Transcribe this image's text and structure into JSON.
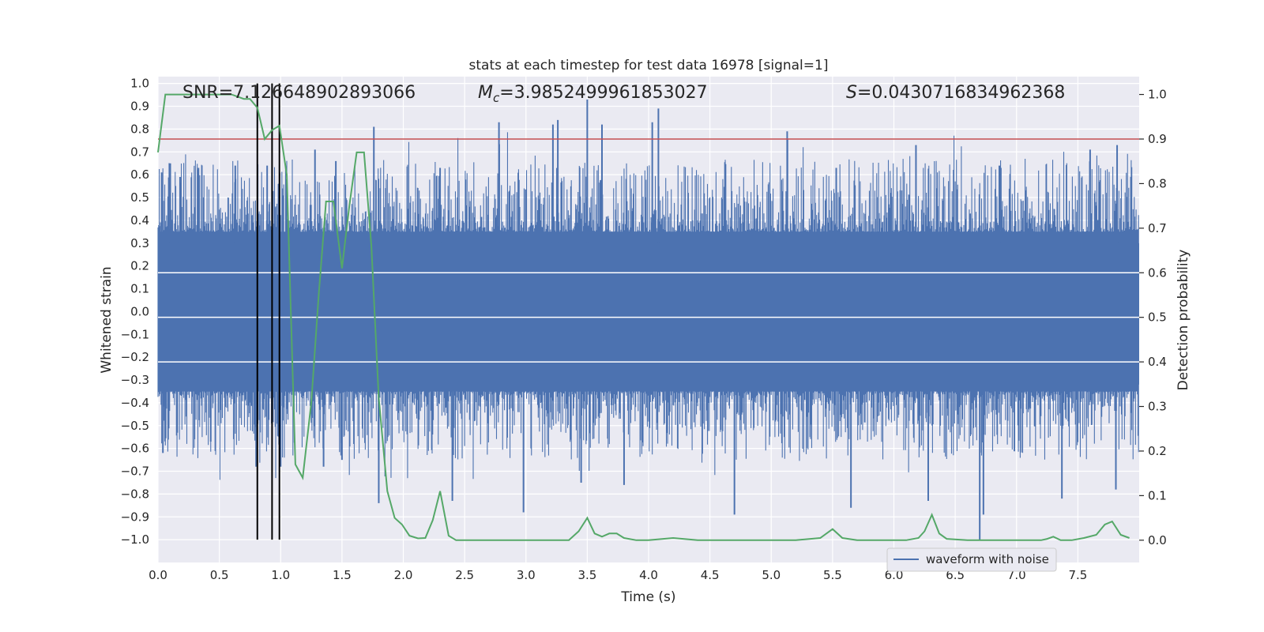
{
  "chart_data": {
    "type": "line",
    "title": "stats at each timestep for test data 16978 [signal=1]",
    "xlabel": "Time (s)",
    "ylabel": "Whitened strain",
    "ylabel_right": "Detection probability",
    "xlim": [
      0.0,
      8.0
    ],
    "ylim": [
      -1.1,
      1.03
    ],
    "ylim_right": [
      -0.05,
      1.04
    ],
    "x_ticks": [
      0.0,
      0.5,
      1.0,
      1.5,
      2.0,
      2.5,
      3.0,
      3.5,
      4.0,
      4.5,
      5.0,
      5.5,
      6.0,
      6.5,
      7.0,
      7.5
    ],
    "x_tick_labels": [
      "0.0",
      "0.5",
      "1.0",
      "1.5",
      "2.0",
      "2.5",
      "3.0",
      "3.5",
      "4.0",
      "4.5",
      "5.0",
      "5.5",
      "6.0",
      "6.5",
      "7.0",
      "7.5"
    ],
    "y_ticks": [
      1.0,
      0.9,
      0.8,
      0.7,
      0.6,
      0.5,
      0.4,
      0.3,
      0.2,
      0.1,
      0.0,
      -0.1,
      -0.2,
      -0.3,
      -0.4,
      -0.5,
      -0.6,
      -0.7,
      -0.8,
      -0.9,
      -1.0
    ],
    "y_tick_labels": [
      "1.0",
      "0.9",
      "0.8",
      "0.7",
      "0.6",
      "0.5",
      "0.4",
      "0.3",
      "0.2",
      "0.1",
      "0.0",
      "−0.1",
      "−0.2",
      "−0.3",
      "−0.4",
      "−0.5",
      "−0.6",
      "−0.7",
      "−0.8",
      "−0.9",
      "−1.0"
    ],
    "y2_ticks": [
      1.0,
      0.9,
      0.8,
      0.7,
      0.6,
      0.5,
      0.4,
      0.3,
      0.2,
      0.1,
      0.0
    ],
    "y2_tick_labels": [
      "1.0",
      "0.9",
      "0.8",
      "0.7",
      "0.6",
      "0.5",
      "0.4",
      "0.3",
      "0.2",
      "0.1",
      "0.0"
    ],
    "annotations": {
      "snr": "SNR=7.126648902893066",
      "mc_symbol": "M",
      "mc_subscript": "c",
      "mc_value": "=3.9852499961853027",
      "s_symbol": "S",
      "s_value": "=0.0430716834962368"
    },
    "threshold": 0.9,
    "vertical_lines_x": [
      0.81,
      0.93,
      0.99
    ],
    "legend": [
      "waveform with noise"
    ],
    "waveform": {
      "name": "waveform with noise",
      "description_envelope_core": 0.35,
      "samples": 1600,
      "spikes": [
        {
          "x": 0.03,
          "y": 0.61
        },
        {
          "x": 0.04,
          "y": -0.62
        },
        {
          "x": 0.1,
          "y": 0.65
        },
        {
          "x": 0.18,
          "y": 0.59
        },
        {
          "x": 0.33,
          "y": 0.63
        },
        {
          "x": 0.43,
          "y": -0.57
        },
        {
          "x": 0.63,
          "y": 0.64
        },
        {
          "x": 0.8,
          "y": -0.68
        },
        {
          "x": 0.89,
          "y": 0.64
        },
        {
          "x": 1.0,
          "y": -0.68
        },
        {
          "x": 1.28,
          "y": 0.71
        },
        {
          "x": 1.35,
          "y": -0.68
        },
        {
          "x": 1.45,
          "y": 0.66
        },
        {
          "x": 1.5,
          "y": -0.65
        },
        {
          "x": 1.76,
          "y": 0.81
        },
        {
          "x": 1.8,
          "y": -0.84
        },
        {
          "x": 2.3,
          "y": 0.63
        },
        {
          "x": 2.4,
          "y": -0.83
        },
        {
          "x": 2.78,
          "y": 0.83
        },
        {
          "x": 2.98,
          "y": -0.88
        },
        {
          "x": 3.22,
          "y": 0.82
        },
        {
          "x": 3.26,
          "y": 0.84
        },
        {
          "x": 3.45,
          "y": -0.75
        },
        {
          "x": 3.5,
          "y": 0.93
        },
        {
          "x": 3.62,
          "y": 0.82
        },
        {
          "x": 3.8,
          "y": -0.76
        },
        {
          "x": 4.03,
          "y": 0.83
        },
        {
          "x": 4.08,
          "y": 0.89
        },
        {
          "x": 4.7,
          "y": -0.89
        },
        {
          "x": 5.13,
          "y": 0.79
        },
        {
          "x": 5.53,
          "y": 0.63
        },
        {
          "x": 5.65,
          "y": -0.86
        },
        {
          "x": 6.18,
          "y": 0.73
        },
        {
          "x": 6.28,
          "y": -0.83
        },
        {
          "x": 6.7,
          "y": -1.0
        },
        {
          "x": 6.73,
          "y": -0.89
        },
        {
          "x": 6.86,
          "y": 0.64
        },
        {
          "x": 7.37,
          "y": -0.82
        },
        {
          "x": 7.6,
          "y": 0.71
        },
        {
          "x": 7.82,
          "y": 0.73
        },
        {
          "x": 7.81,
          "y": -0.78
        },
        {
          "x": 7.9,
          "y": 0.5
        }
      ]
    },
    "detection_probability": {
      "name": "detection probability",
      "x": [
        0.0,
        0.06,
        0.12,
        0.25,
        0.5,
        0.6,
        0.7,
        0.75,
        0.81,
        0.87,
        0.93,
        0.99,
        1.05,
        1.12,
        1.18,
        1.25,
        1.31,
        1.37,
        1.43,
        1.5,
        1.56,
        1.62,
        1.68,
        1.74,
        1.8,
        1.87,
        1.93,
        1.99,
        2.05,
        2.12,
        2.18,
        2.24,
        2.3,
        2.37,
        2.43,
        2.5,
        2.7,
        3.0,
        3.2,
        3.35,
        3.43,
        3.5,
        3.56,
        3.62,
        3.68,
        3.74,
        3.8,
        3.9,
        4.0,
        4.2,
        4.4,
        4.6,
        4.8,
        5.0,
        5.2,
        5.4,
        5.5,
        5.58,
        5.7,
        5.9,
        6.1,
        6.2,
        6.25,
        6.31,
        6.37,
        6.43,
        6.6,
        6.8,
        7.0,
        7.2,
        7.25,
        7.3,
        7.36,
        7.45,
        7.55,
        7.65,
        7.72,
        7.78,
        7.85,
        7.92
      ],
      "y": [
        0.87,
        1.0,
        1.0,
        1.0,
        1.0,
        1.0,
        0.99,
        0.99,
        0.97,
        0.9,
        0.92,
        0.93,
        0.82,
        0.17,
        0.14,
        0.31,
        0.55,
        0.76,
        0.76,
        0.61,
        0.75,
        0.87,
        0.87,
        0.66,
        0.32,
        0.11,
        0.05,
        0.035,
        0.01,
        0.004,
        0.005,
        0.045,
        0.11,
        0.01,
        0.0,
        0.0,
        0.0,
        0.0,
        0.0,
        0.0,
        0.02,
        0.05,
        0.015,
        0.008,
        0.015,
        0.015,
        0.005,
        0.0,
        0.0,
        0.005,
        0.0,
        0.0,
        0.0,
        0.0,
        0.0,
        0.005,
        0.025,
        0.005,
        0.0,
        0.0,
        0.0,
        0.005,
        0.02,
        0.057,
        0.015,
        0.003,
        0.0,
        0.0,
        0.0,
        0.0,
        0.003,
        0.008,
        0.0,
        0.0,
        0.005,
        0.012,
        0.035,
        0.042,
        0.012,
        0.005
      ]
    }
  }
}
